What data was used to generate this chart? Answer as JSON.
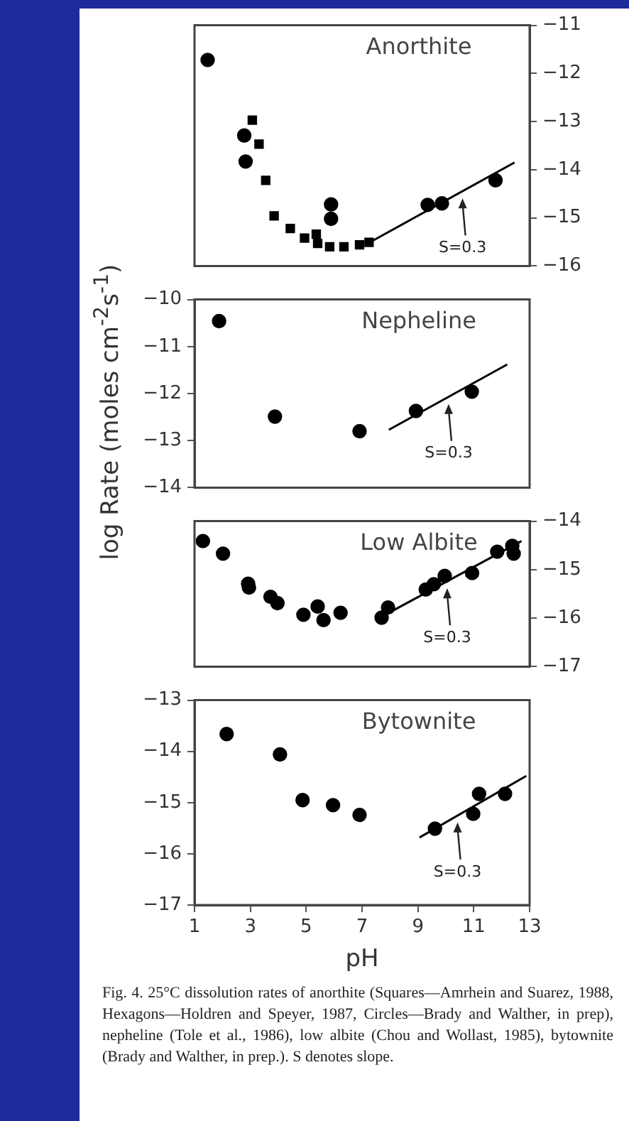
{
  "chart_data": [
    {
      "type": "scatter",
      "title": "Anorthite",
      "xlim": [
        1,
        13
      ],
      "ylim": [
        -16,
        -11
      ],
      "yticks": [
        -16,
        -15,
        -14,
        -13,
        -12,
        -11
      ],
      "tick_labels": "y",
      "marker": "circle",
      "series": [
        {
          "marker": "square",
          "color": "#000000",
          "x": [
            3.07,
            3.31,
            3.55,
            3.85,
            4.43,
            4.94,
            5.36,
            5.41,
            5.84,
            6.35,
            6.91,
            7.25
          ],
          "values": [
            -12.97,
            -13.47,
            -14.22,
            -14.96,
            -15.22,
            -15.42,
            -15.34,
            -15.53,
            -15.6,
            -15.6,
            -15.56,
            -15.51
          ]
        },
        {
          "color": "#000000",
          "x": [
            1.47,
            2.78,
            2.83,
            5.89,
            5.89,
            9.35,
            9.86,
            11.78
          ],
          "values": [
            -11.72,
            -13.29,
            -13.83,
            -14.72,
            -15.02,
            -14.73,
            -14.7,
            -14.22
          ]
        },
        {
          "type": "line",
          "marker": "none",
          "color": "#000000",
          "x": [
            7.27,
            12.46
          ],
          "values": [
            -15.51,
            -13.85
          ]
        }
      ],
      "annotations": [
        {
          "text": "S=0.3",
          "x": 10.6,
          "y": -14.45
        }
      ]
    },
    {
      "type": "scatter",
      "title": "Nepheline",
      "ylabel": "log Rate (moles cm$^{-2}$s$^{-1}$)",
      "xlim": [
        1,
        13
      ],
      "ylim": [
        -14,
        -10
      ],
      "yticks": [
        -14,
        -13,
        -12,
        -11,
        -10
      ],
      "tick_labels": "y",
      "marker": "circle",
      "series": [
        {
          "color": "#000000",
          "x": [
            1.88,
            3.88,
            6.91,
            8.93,
            10.93
          ],
          "values": [
            -10.46,
            -12.49,
            -12.8,
            -12.37,
            -11.96
          ]
        },
        {
          "type": "line",
          "marker": "none",
          "color": "#000000",
          "x": [
            7.96,
            12.2
          ],
          "values": [
            -12.77,
            -11.38
          ]
        }
      ],
      "annotations": [
        {
          "text": "S=0.3",
          "x": 10.1,
          "y": -12.07
        }
      ]
    },
    {
      "type": "scatter",
      "title": "Low Albite",
      "xlim": [
        1,
        13
      ],
      "ylim": [
        -17,
        -14
      ],
      "yticks": [
        -17,
        -16,
        -15,
        -14
      ],
      "tick_labels": "y",
      "marker": "circle",
      "series": [
        {
          "color": "#000000",
          "x": [
            1.3,
            2.02,
            2.92,
            2.95,
            3.72,
            3.97,
            4.9,
            5.41,
            5.62,
            6.23,
            7.7,
            7.93,
            9.28,
            9.57,
            9.96,
            10.94,
            11.84,
            12.38,
            12.43
          ],
          "values": [
            -14.41,
            -14.67,
            -15.29,
            -15.37,
            -15.56,
            -15.69,
            -15.93,
            -15.76,
            -16.04,
            -15.89,
            -15.99,
            -15.78,
            -15.41,
            -15.3,
            -15.13,
            -15.07,
            -14.63,
            -14.51,
            -14.67
          ]
        },
        {
          "type": "line",
          "marker": "none",
          "color": "#000000",
          "x": [
            7.96,
            12.71
          ],
          "values": [
            -15.89,
            -14.41
          ]
        }
      ],
      "annotations": [
        {
          "text": "S=0.3",
          "x": 10.05,
          "y": -15.24
        }
      ]
    },
    {
      "type": "scatter",
      "title": "Bytownite",
      "xlabel": "pH",
      "xlim": [
        1,
        13
      ],
      "xticks": [
        1,
        3,
        5,
        7,
        9,
        11,
        13
      ],
      "ylim": [
        -17,
        -13
      ],
      "yticks": [
        -17,
        -16,
        -15,
        -14,
        -13
      ],
      "marker": "circle",
      "series": [
        {
          "color": "#000000",
          "x": [
            2.15,
            4.06,
            4.87,
            5.96,
            6.91,
            9.61,
            10.98,
            11.19,
            12.12
          ],
          "values": [
            -13.66,
            -14.06,
            -14.95,
            -15.05,
            -15.24,
            -15.51,
            -15.22,
            -14.83,
            -14.83
          ]
        },
        {
          "type": "line",
          "marker": "none",
          "color": "#000000",
          "x": [
            9.06,
            12.88
          ],
          "values": [
            -15.68,
            -14.48
          ]
        }
      ],
      "annotations": [
        {
          "text": "S=0.3",
          "x": 10.42,
          "y": -15.25
        },
        "Fig. 4. 25°C dissolution rates of anorthite (Squares—Amrhein and Suarez, 1988, Hexagons—Holdren and Speyer, 1987, Circles—Brady and Walther, in prep), nepheline (Tole et al., 1986), low albite (Chou and Wollast, 1985), bytownite (Brady and Walther, in prep.). S denotes slope."
      ]
    }
  ]
}
